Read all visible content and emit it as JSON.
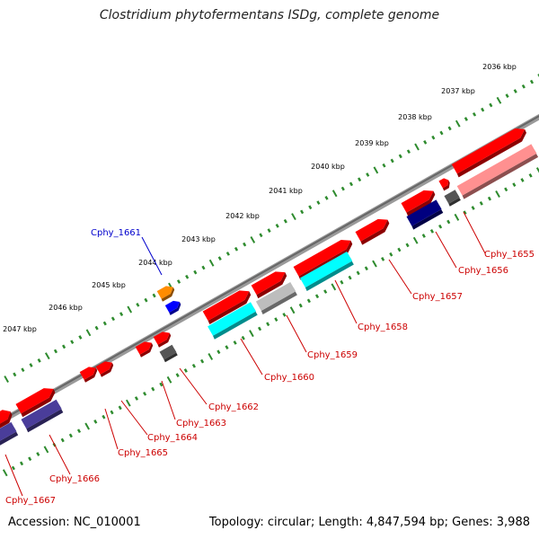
{
  "title": "Clostridium phytofermentans ISDg, complete genome",
  "accession": "Accession: NC_010001",
  "summary": "Topology: circular; Length: 4,847,594 bp; Genes: 3,988",
  "kbp_labels": [
    "2036 kbp",
    "2037 kbp",
    "2038 kbp",
    "2039 kbp",
    "2040 kbp",
    "2041 kbp",
    "2042 kbp",
    "2043 kbp",
    "2044 kbp",
    "2045 kbp",
    "2046 kbp",
    "2047 kbp"
  ],
  "gene_labels": [
    "Cphy_1655",
    "Cphy_1656",
    "Cphy_1657",
    "Cphy_1658",
    "Cphy_1659",
    "Cphy_1660",
    "Cphy_1661",
    "Cphy_1662",
    "Cphy_1663",
    "Cphy_1664",
    "Cphy_1665",
    "Cphy_1666",
    "Cphy_1667"
  ],
  "colors": {
    "gene": "#ff0000",
    "gene_light": "#ff9090",
    "cyan": "#00ffff",
    "grey": "#bdbdbd",
    "dark_grey": "#555555",
    "navy": "#000080",
    "slate": "#4a3d9a",
    "orange": "#ff8c00",
    "blue": "#0000ff",
    "backbone": "#7a7a7a",
    "ticks": "#2e8b2e",
    "label": "#cc0000",
    "highlight_label": "#0000cc"
  }
}
